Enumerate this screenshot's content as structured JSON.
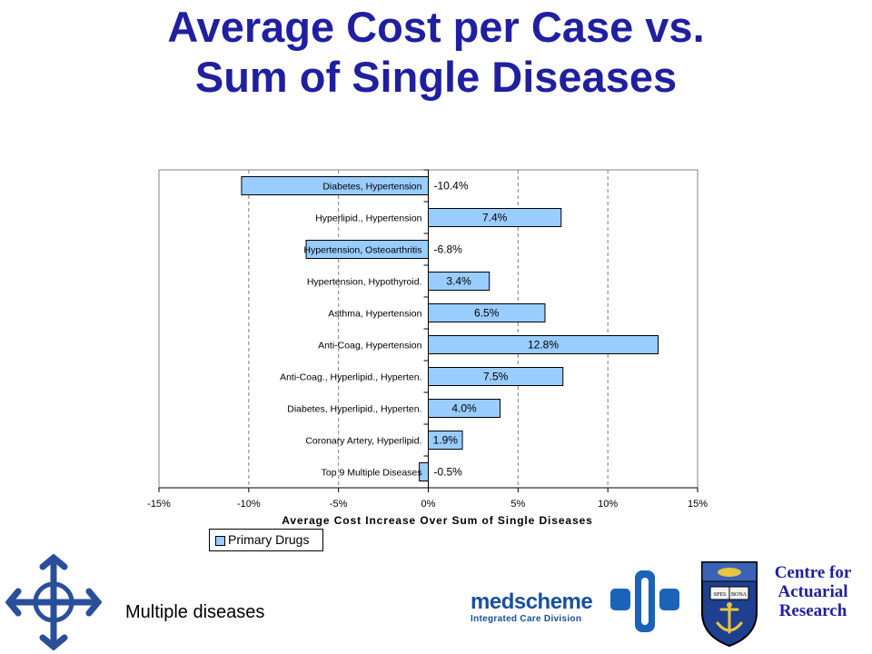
{
  "title": {
    "line1": "Average Cost per Case vs.",
    "line2": "Sum of Single Diseases"
  },
  "footer": {
    "left_text": "Multiple diseases"
  },
  "logos": {
    "medscheme": {
      "name": "medscheme",
      "subtitle": "Integrated Care Division"
    },
    "car": {
      "line1": "Centre for",
      "line2": "Actuarial",
      "line3": "Research"
    },
    "crest_motto": [
      "SPES",
      "BONA"
    ]
  },
  "colors": {
    "title": "#1f1fa0",
    "bar_fill": "#99ccff",
    "bar_stroke": "#000000",
    "grid": "#808080"
  },
  "chart_data": {
    "type": "bar",
    "orientation": "horizontal",
    "categories": [
      "Diabetes, Hypertension",
      "Hyperlipid., Hypertension",
      "Hypertension, Osteoarthritis",
      "Hypertension, Hypothyroid.",
      "Asthma, Hypertension",
      "Anti-Coag, Hypertension",
      "Anti-Coag., Hyperlipid., Hyperten.",
      "Diabetes, Hyperlipid., Hyperten.",
      "Coronary Artery, Hyperlipid.",
      "Top 9 Multiple Diseases"
    ],
    "series": [
      {
        "name": "Primary Drugs",
        "values": [
          -10.4,
          7.4,
          -6.8,
          3.4,
          6.5,
          12.8,
          7.5,
          4.0,
          1.9,
          -0.5
        ],
        "labels": [
          "-10.4%",
          "7.4%",
          "-6.8%",
          "3.4%",
          "6.5%",
          "12.8%",
          "7.5%",
          "4.0%",
          "1.9%",
          "-0.5%"
        ]
      }
    ],
    "xlim": [
      -15,
      15
    ],
    "xticks": [
      -15,
      -10,
      -5,
      0,
      5,
      10,
      15
    ],
    "xtick_labels": [
      "-15%",
      "-10%",
      "-5%",
      "0%",
      "5%",
      "10%",
      "15%"
    ],
    "xlabel": "Average Cost Increase Over Sum of Single Diseases",
    "ylabel": "",
    "grid": "vertical dashed",
    "legend": "bottom-left"
  }
}
